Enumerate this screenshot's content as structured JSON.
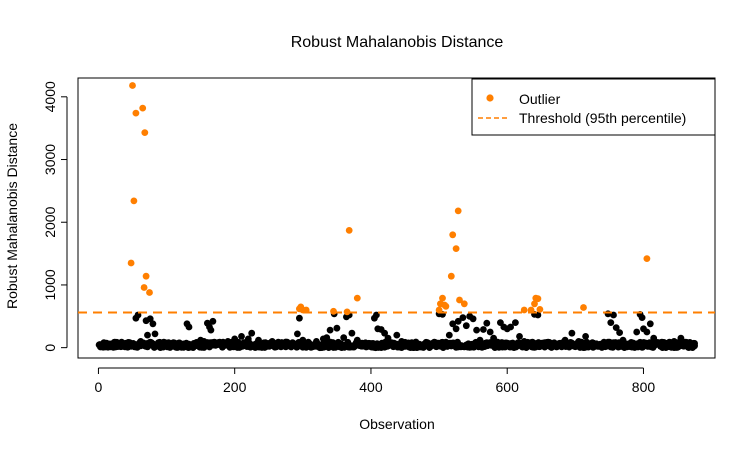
{
  "chart_data": {
    "type": "scatter",
    "title": "Robust Mahalanobis Distance",
    "xlabel": "Observation",
    "ylabel": "Robust Mahalanobis Distance",
    "xlim": [
      -30,
      905
    ],
    "ylim": [
      -165,
      4300
    ],
    "x_ticks": [
      0,
      200,
      400,
      600,
      800
    ],
    "y_ticks": [
      0,
      1000,
      2000,
      3000,
      4000
    ],
    "threshold": 560,
    "colors": {
      "outlier": "#ff7f00",
      "inlier": "#000000",
      "threshold": "#ff7f00"
    },
    "legend": {
      "placement": "top-right",
      "entries": [
        "Outlier",
        "Threshold (95th percentile)"
      ]
    },
    "outliers": [
      [
        48,
        1350
      ],
      [
        50,
        4180
      ],
      [
        52,
        2340
      ],
      [
        55,
        3740
      ],
      [
        65,
        3820
      ],
      [
        67,
        960
      ],
      [
        68,
        3430
      ],
      [
        70,
        1140
      ],
      [
        75,
        880
      ],
      [
        295,
        620
      ],
      [
        297,
        650
      ],
      [
        300,
        600
      ],
      [
        305,
        600
      ],
      [
        345,
        580
      ],
      [
        365,
        570
      ],
      [
        368,
        1870
      ],
      [
        380,
        790
      ],
      [
        500,
        600
      ],
      [
        502,
        700
      ],
      [
        505,
        790
      ],
      [
        508,
        680
      ],
      [
        510,
        660
      ],
      [
        518,
        1140
      ],
      [
        520,
        1800
      ],
      [
        525,
        1580
      ],
      [
        528,
        2180
      ],
      [
        530,
        760
      ],
      [
        537,
        700
      ],
      [
        625,
        600
      ],
      [
        635,
        600
      ],
      [
        640,
        700
      ],
      [
        642,
        790
      ],
      [
        645,
        780
      ],
      [
        648,
        610
      ],
      [
        712,
        640
      ],
      [
        805,
        1420
      ]
    ],
    "inliers": [
      [
        5,
        30
      ],
      [
        10,
        10
      ],
      [
        15,
        40
      ],
      [
        22,
        15
      ],
      [
        30,
        20
      ],
      [
        38,
        35
      ],
      [
        45,
        60
      ],
      [
        55,
        470
      ],
      [
        58,
        520
      ],
      [
        62,
        100
      ],
      [
        70,
        430
      ],
      [
        72,
        200
      ],
      [
        76,
        460
      ],
      [
        80,
        380
      ],
      [
        83,
        220
      ],
      [
        88,
        80
      ],
      [
        95,
        50
      ],
      [
        105,
        30
      ],
      [
        115,
        45
      ],
      [
        125,
        60
      ],
      [
        130,
        380
      ],
      [
        133,
        330
      ],
      [
        140,
        50
      ],
      [
        150,
        120
      ],
      [
        155,
        100
      ],
      [
        160,
        390
      ],
      [
        163,
        330
      ],
      [
        165,
        280
      ],
      [
        168,
        420
      ],
      [
        172,
        80
      ],
      [
        180,
        50
      ],
      [
        190,
        100
      ],
      [
        200,
        140
      ],
      [
        210,
        180
      ],
      [
        220,
        140
      ],
      [
        225,
        230
      ],
      [
        235,
        120
      ],
      [
        245,
        80
      ],
      [
        255,
        100
      ],
      [
        265,
        50
      ],
      [
        275,
        90
      ],
      [
        285,
        80
      ],
      [
        292,
        220
      ],
      [
        295,
        470
      ],
      [
        300,
        120
      ],
      [
        310,
        60
      ],
      [
        320,
        100
      ],
      [
        330,
        140
      ],
      [
        335,
        160
      ],
      [
        340,
        280
      ],
      [
        346,
        540
      ],
      [
        350,
        310
      ],
      [
        360,
        160
      ],
      [
        364,
        490
      ],
      [
        368,
        520
      ],
      [
        372,
        230
      ],
      [
        380,
        120
      ],
      [
        390,
        60
      ],
      [
        400,
        40
      ],
      [
        405,
        470
      ],
      [
        408,
        520
      ],
      [
        410,
        300
      ],
      [
        415,
        290
      ],
      [
        420,
        230
      ],
      [
        425,
        150
      ],
      [
        430,
        80
      ],
      [
        438,
        200
      ],
      [
        445,
        100
      ],
      [
        455,
        50
      ],
      [
        465,
        30
      ],
      [
        475,
        40
      ],
      [
        485,
        60
      ],
      [
        495,
        80
      ],
      [
        500,
        540
      ],
      [
        505,
        530
      ],
      [
        515,
        200
      ],
      [
        520,
        380
      ],
      [
        525,
        300
      ],
      [
        528,
        420
      ],
      [
        535,
        480
      ],
      [
        540,
        350
      ],
      [
        545,
        500
      ],
      [
        550,
        460
      ],
      [
        555,
        280
      ],
      [
        560,
        120
      ],
      [
        565,
        290
      ],
      [
        570,
        390
      ],
      [
        575,
        250
      ],
      [
        580,
        150
      ],
      [
        585,
        80
      ],
      [
        590,
        400
      ],
      [
        595,
        330
      ],
      [
        600,
        300
      ],
      [
        605,
        330
      ],
      [
        612,
        400
      ],
      [
        618,
        180
      ],
      [
        625,
        100
      ],
      [
        632,
        60
      ],
      [
        640,
        530
      ],
      [
        645,
        520
      ],
      [
        655,
        80
      ],
      [
        665,
        40
      ],
      [
        675,
        60
      ],
      [
        685,
        120
      ],
      [
        695,
        230
      ],
      [
        705,
        100
      ],
      [
        715,
        180
      ],
      [
        725,
        80
      ],
      [
        740,
        60
      ],
      [
        748,
        540
      ],
      [
        752,
        400
      ],
      [
        756,
        520
      ],
      [
        760,
        320
      ],
      [
        765,
        240
      ],
      [
        770,
        120
      ],
      [
        780,
        60
      ],
      [
        790,
        250
      ],
      [
        795,
        530
      ],
      [
        798,
        480
      ],
      [
        800,
        300
      ],
      [
        805,
        250
      ],
      [
        810,
        380
      ],
      [
        815,
        150
      ],
      [
        825,
        80
      ],
      [
        835,
        60
      ],
      [
        845,
        100
      ],
      [
        855,
        150
      ],
      [
        865,
        60
      ],
      [
        875,
        30
      ]
    ],
    "x_max": 875
  }
}
